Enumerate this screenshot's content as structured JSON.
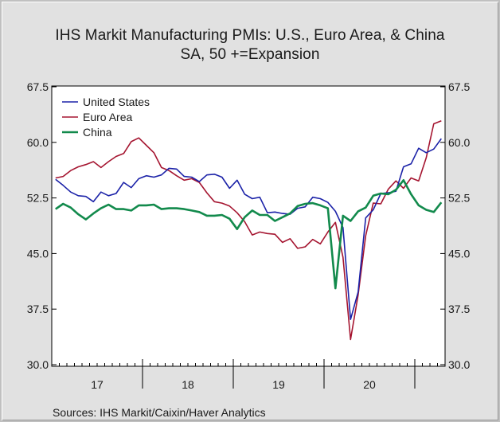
{
  "chart_data": {
    "type": "line",
    "title": "IHS Markit Manufacturing PMIs: U.S., Euro Area, & China",
    "subtitle": "SA, 50 +=Expansion",
    "ylim": [
      30.0,
      67.5
    ],
    "y_ticks": [
      "30.0",
      "37.5",
      "45.0",
      "52.5",
      "60.0",
      "67.5"
    ],
    "y_tick_values": [
      30.0,
      37.5,
      45.0,
      52.5,
      60.0,
      67.5
    ],
    "x_tick_labels": [
      "17",
      "18",
      "19",
      "20"
    ],
    "x_period": "monthly, Jan 2017 – Apr 2021",
    "legend_position": "top-left",
    "grid": false,
    "series": [
      {
        "name": "United States",
        "color": "#1b22a8",
        "values": [
          55.0,
          54.2,
          53.3,
          52.8,
          52.7,
          52.0,
          53.3,
          52.8,
          53.1,
          54.6,
          53.9,
          55.1,
          55.5,
          55.3,
          55.6,
          56.5,
          56.4,
          55.4,
          55.3,
          54.7,
          55.6,
          55.7,
          55.3,
          53.8,
          54.9,
          53.0,
          52.4,
          52.6,
          50.5,
          50.6,
          50.4,
          50.3,
          51.1,
          51.3,
          52.6,
          52.4,
          51.9,
          50.7,
          48.5,
          36.1,
          39.8,
          49.8,
          50.9,
          53.1,
          53.2,
          53.4,
          56.7,
          57.1,
          59.2,
          58.6,
          59.1,
          60.5
        ]
      },
      {
        "name": "Euro Area",
        "color": "#a51530",
        "values": [
          55.2,
          55.4,
          56.2,
          56.7,
          57.0,
          57.4,
          56.6,
          57.4,
          58.1,
          58.5,
          60.1,
          60.6,
          59.6,
          58.6,
          56.6,
          56.2,
          55.5,
          54.9,
          55.1,
          54.6,
          53.2,
          52.0,
          51.8,
          51.4,
          50.5,
          49.3,
          47.5,
          47.9,
          47.7,
          47.6,
          46.5,
          47.0,
          45.7,
          45.9,
          46.9,
          46.3,
          47.9,
          49.2,
          44.5,
          33.4,
          39.4,
          47.4,
          51.8,
          51.7,
          53.7,
          54.8,
          53.8,
          55.2,
          54.8,
          57.9,
          62.5,
          62.9
        ]
      },
      {
        "name": "China",
        "color": "#128a4c",
        "values": [
          51.0,
          51.7,
          51.2,
          50.3,
          49.6,
          50.4,
          51.1,
          51.6,
          51.0,
          51.0,
          50.8,
          51.5,
          51.5,
          51.6,
          51.0,
          51.1,
          51.1,
          51.0,
          50.8,
          50.6,
          50.1,
          50.1,
          50.2,
          49.7,
          48.3,
          49.9,
          50.8,
          50.2,
          50.2,
          49.4,
          49.9,
          50.4,
          51.4,
          51.7,
          51.8,
          51.5,
          51.1,
          40.3,
          50.1,
          49.4,
          50.7,
          51.2,
          52.8,
          53.1,
          53.0,
          53.6,
          54.9,
          53.0,
          51.5,
          50.9,
          50.6,
          51.9
        ]
      }
    ]
  },
  "footer": {
    "source": "Sources:   IHS Markit/Caixin/Haver Analytics"
  }
}
